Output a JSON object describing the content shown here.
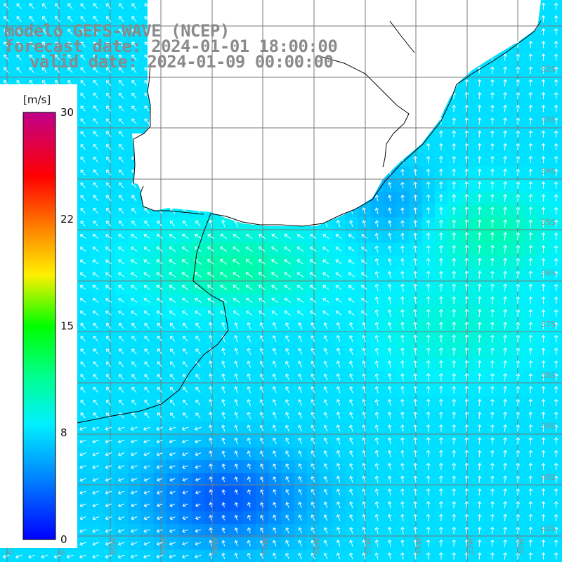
{
  "header": {
    "line1": "modelo GEFS-WAVE (NCEP)",
    "line2": "forecast date: 2024-01-01 18:00:00",
    "line3": "valid date: 2024-01-09 00:00:00"
  },
  "colorbar": {
    "units": "[m/s]",
    "ticks": [
      "30",
      "22",
      "15",
      "8",
      "0"
    ],
    "tick_values": [
      30,
      22,
      15,
      8,
      0
    ],
    "range": [
      0,
      30
    ],
    "colors": [
      "#0000ff",
      "#0080ff",
      "#00e0ff",
      "#00ff80",
      "#00ff00",
      "#ffff00",
      "#ff8000",
      "#ff0000",
      "#c0008a"
    ]
  },
  "map": {
    "lat_labels": [
      "32S",
      "33S",
      "34S",
      "35S",
      "36S",
      "37S",
      "38S",
      "39S",
      "40S",
      "41S"
    ],
    "lon_labels": [
      "62W",
      "61W",
      "60W",
      "59W",
      "58W",
      "57W",
      "56W",
      "55W",
      "54W",
      "53W",
      "52W"
    ],
    "ocean_color": "#00c8ff",
    "land_color": "#ffffff",
    "grid_color": "#808080"
  }
}
